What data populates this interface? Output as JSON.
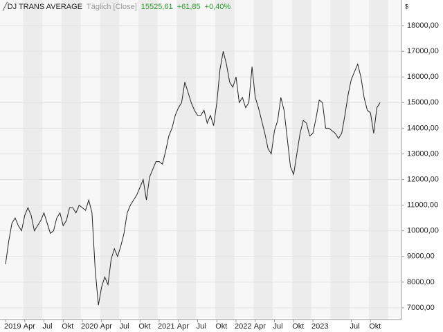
{
  "chart_data": {
    "type": "line",
    "title": "DJ TRANS AVERAGE",
    "subtitle": "Täglich [Close]",
    "header_values": [
      "15525,61",
      "+61,85",
      "+0,40%"
    ],
    "currency": "$",
    "categories": [
      "2019",
      null,
      null,
      null,
      null,
      null,
      "Apr",
      null,
      null,
      null,
      null,
      null,
      "Jul",
      null,
      null,
      null,
      null,
      null,
      "Okt",
      null,
      null,
      null,
      null,
      null,
      "2020",
      null,
      null,
      null,
      null,
      null,
      "Apr",
      null,
      null,
      null,
      null,
      null,
      "Jul",
      null,
      null,
      null,
      null,
      null,
      "Okt",
      null,
      null,
      null,
      null,
      null,
      "2021",
      null,
      null,
      null,
      null,
      null,
      "Apr",
      null,
      null,
      null,
      null,
      null,
      "Jul",
      null,
      null,
      null,
      null,
      null,
      "Okt",
      null,
      null,
      null,
      null,
      null,
      "2022",
      null,
      null,
      null,
      null,
      null,
      "Apr",
      null,
      null,
      null,
      null,
      null,
      "Jul",
      null,
      null,
      null,
      null,
      null,
      "Okt",
      null,
      null,
      null,
      null,
      null,
      "2023",
      null,
      null,
      null,
      null,
      null,
      null,
      null,
      null,
      null,
      null,
      null,
      "Jul",
      null,
      null,
      null,
      null,
      null,
      "Okt",
      null,
      null,
      null
    ],
    "series": [
      {
        "color": "#222222",
        "values": [
          8700,
          9600,
          10300,
          10500,
          10200,
          10000,
          10600,
          10900,
          10600,
          10000,
          10200,
          10400,
          10700,
          10300,
          9900,
          10000,
          10500,
          10700,
          10200,
          10400,
          10900,
          10900,
          10700,
          11000,
          10900,
          10800,
          11200,
          10700,
          8500,
          7100,
          7800,
          8200,
          7900,
          8900,
          9300,
          9000,
          9400,
          9900,
          10700,
          11000,
          11200,
          11400,
          11700,
          12000,
          11200,
          12100,
          12400,
          12700,
          12700,
          12600,
          13100,
          13700,
          14000,
          14500,
          14800,
          15000,
          15800,
          15400,
          15000,
          14700,
          14500,
          14500,
          14700,
          14200,
          14500,
          14100,
          15000,
          16300,
          17000,
          16500,
          15800,
          15600,
          16000,
          15000,
          15200,
          14800,
          15000,
          16400,
          15200,
          14800,
          14300,
          13800,
          13200,
          13000,
          13900,
          14300,
          15200,
          14700,
          13600,
          12500,
          12200,
          13000,
          13800,
          14300,
          14200,
          13700,
          13800,
          14400,
          15100,
          15000,
          14000,
          14000,
          13900,
          13800,
          13600,
          13800,
          14500,
          15300,
          15900,
          16200,
          16500,
          16000,
          15200,
          14700,
          14600,
          13800,
          14800,
          15000
        ]
      }
    ],
    "ylim": [
      6540,
      19000
    ],
    "yticks": [
      {
        "value": 7000,
        "label": "7000,00"
      },
      {
        "value": 8000,
        "label": "8000,00"
      },
      {
        "value": 9000,
        "label": "9000,00"
      },
      {
        "value": 10000,
        "label": "10000,00"
      },
      {
        "value": 11000,
        "label": "11000,00"
      },
      {
        "value": 12000,
        "label": "12000,00"
      },
      {
        "value": 13000,
        "label": "13000,00"
      },
      {
        "value": 14000,
        "label": "14000,00"
      },
      {
        "value": 15000,
        "label": "15000,00"
      },
      {
        "value": 16000,
        "label": "16000,00"
      },
      {
        "value": 17000,
        "label": "17000,00"
      },
      {
        "value": 18000,
        "label": "18000,00"
      }
    ],
    "grid": true
  }
}
